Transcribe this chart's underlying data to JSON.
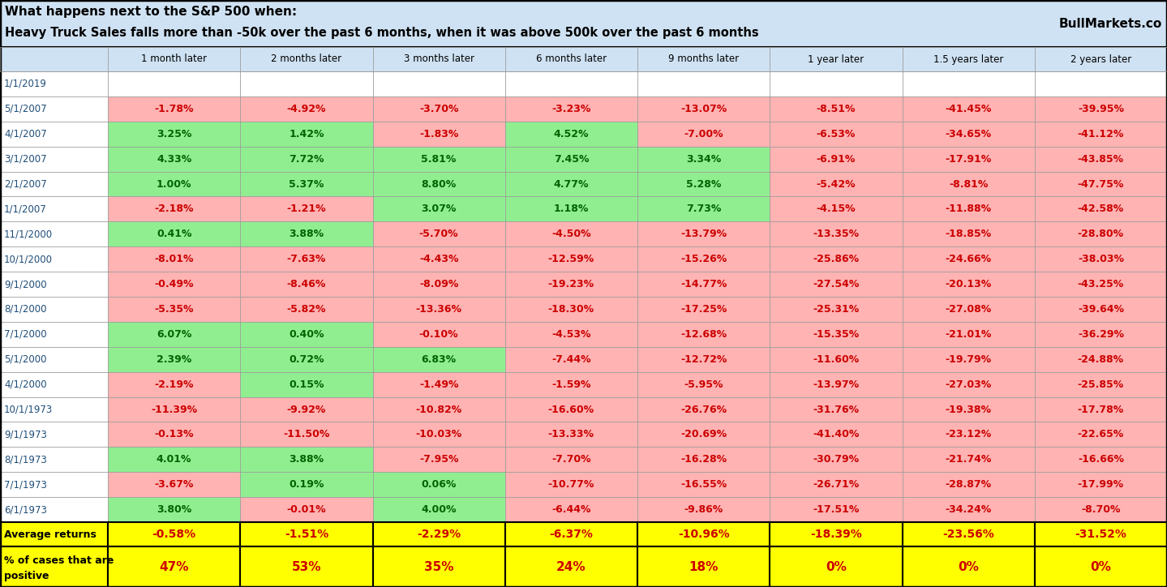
{
  "title_line1": "What happens next to the S&P 500 when:",
  "title_line2": "Heavy Truck Sales falls more than -50k over the past 6 months, when it was above 500k over the past 6 months",
  "branding": "BullMarkets.co",
  "col_headers": [
    "",
    "1 month later",
    "2 months later",
    "3 months later",
    "6 months later",
    "9 months later",
    "1 year later",
    "1.5 years later",
    "2 years later"
  ],
  "rows": [
    [
      "1/1/2019",
      "",
      "",
      "",
      "",
      "",
      "",
      "",
      ""
    ],
    [
      "5/1/2007",
      "-1.78%",
      "-4.92%",
      "-3.70%",
      "-3.23%",
      "-13.07%",
      "-8.51%",
      "-41.45%",
      "-39.95%"
    ],
    [
      "4/1/2007",
      "3.25%",
      "1.42%",
      "-1.83%",
      "4.52%",
      "-7.00%",
      "-6.53%",
      "-34.65%",
      "-41.12%"
    ],
    [
      "3/1/2007",
      "4.33%",
      "7.72%",
      "5.81%",
      "7.45%",
      "3.34%",
      "-6.91%",
      "-17.91%",
      "-43.85%"
    ],
    [
      "2/1/2007",
      "1.00%",
      "5.37%",
      "8.80%",
      "4.77%",
      "5.28%",
      "-5.42%",
      "-8.81%",
      "-47.75%"
    ],
    [
      "1/1/2007",
      "-2.18%",
      "-1.21%",
      "3.07%",
      "1.18%",
      "7.73%",
      "-4.15%",
      "-11.88%",
      "-42.58%"
    ],
    [
      "11/1/2000",
      "0.41%",
      "3.88%",
      "-5.70%",
      "-4.50%",
      "-13.79%",
      "-13.35%",
      "-18.85%",
      "-28.80%"
    ],
    [
      "10/1/2000",
      "-8.01%",
      "-7.63%",
      "-4.43%",
      "-12.59%",
      "-15.26%",
      "-25.86%",
      "-24.66%",
      "-38.03%"
    ],
    [
      "9/1/2000",
      "-0.49%",
      "-8.46%",
      "-8.09%",
      "-19.23%",
      "-14.77%",
      "-27.54%",
      "-20.13%",
      "-43.25%"
    ],
    [
      "8/1/2000",
      "-5.35%",
      "-5.82%",
      "-13.36%",
      "-18.30%",
      "-17.25%",
      "-25.31%",
      "-27.08%",
      "-39.64%"
    ],
    [
      "7/1/2000",
      "6.07%",
      "0.40%",
      "-0.10%",
      "-4.53%",
      "-12.68%",
      "-15.35%",
      "-21.01%",
      "-36.29%"
    ],
    [
      "5/1/2000",
      "2.39%",
      "0.72%",
      "6.83%",
      "-7.44%",
      "-12.72%",
      "-11.60%",
      "-19.79%",
      "-24.88%"
    ],
    [
      "4/1/2000",
      "-2.19%",
      "0.15%",
      "-1.49%",
      "-1.59%",
      "-5.95%",
      "-13.97%",
      "-27.03%",
      "-25.85%"
    ],
    [
      "10/1/1973",
      "-11.39%",
      "-9.92%",
      "-10.82%",
      "-16.60%",
      "-26.76%",
      "-31.76%",
      "-19.38%",
      "-17.78%"
    ],
    [
      "9/1/1973",
      "-0.13%",
      "-11.50%",
      "-10.03%",
      "-13.33%",
      "-20.69%",
      "-41.40%",
      "-23.12%",
      "-22.65%"
    ],
    [
      "8/1/1973",
      "4.01%",
      "3.88%",
      "-7.95%",
      "-7.70%",
      "-16.28%",
      "-30.79%",
      "-21.74%",
      "-16.66%"
    ],
    [
      "7/1/1973",
      "-3.67%",
      "0.19%",
      "0.06%",
      "-10.77%",
      "-16.55%",
      "-26.71%",
      "-28.87%",
      "-17.99%"
    ],
    [
      "6/1/1973",
      "3.80%",
      "-0.01%",
      "4.00%",
      "-6.44%",
      "-9.86%",
      "-17.51%",
      "-34.24%",
      "-8.70%"
    ]
  ],
  "avg_row": [
    "Average returns",
    "-0.58%",
    "-1.51%",
    "-2.29%",
    "-6.37%",
    "-10.96%",
    "-18.39%",
    "-23.56%",
    "-31.52%"
  ],
  "pct_label_line1": "% of cases that are",
  "pct_label_line2": "positive",
  "pct_row": [
    "",
    "47%",
    "53%",
    "35%",
    "24%",
    "18%",
    "0%",
    "0%",
    "0%"
  ],
  "header_bg": "#cfe2f3",
  "title_bg": "#cfe2f3",
  "positive_color": "#90ee90",
  "negative_color": "#ffb3b3",
  "empty_color": "#ffffff",
  "yellow_bg": "#ffff00",
  "text_positive": "#006400",
  "text_negative": "#cc0000",
  "text_avg": "#cc0000",
  "border_color": "#999999",
  "outer_border_color": "#000000",
  "header_text_color": "#000000",
  "row_label_color": "#1f4e79"
}
